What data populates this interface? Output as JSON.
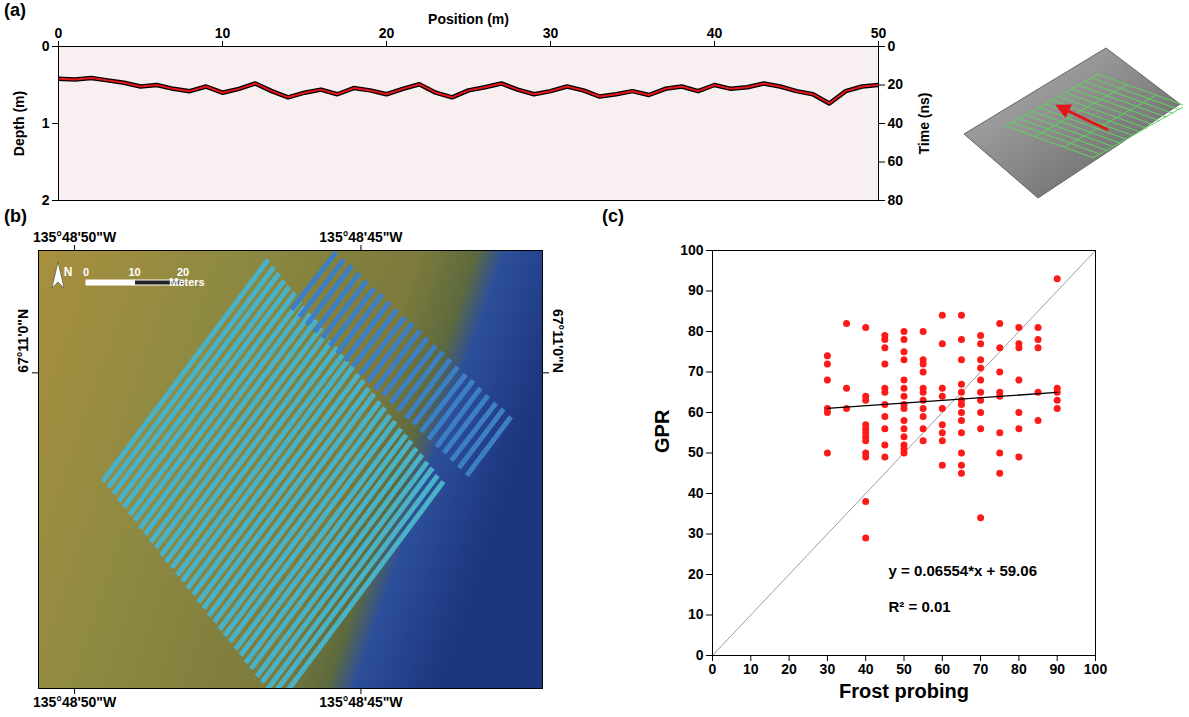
{
  "chart_data": [
    {
      "type": "line",
      "title": "(a)",
      "x_label": "Position (m)",
      "y_label": "Depth (m)",
      "y2_label": "Time (ns)",
      "xlim": [
        0,
        50
      ],
      "xticks": [
        0,
        10,
        20,
        30,
        40,
        50
      ],
      "ylim": [
        0,
        2
      ],
      "yticks": [
        0,
        1,
        2
      ],
      "y2lim": [
        0,
        80
      ],
      "y2ticks": [
        0,
        20,
        40,
        60,
        80
      ],
      "x": [
        0,
        1,
        2,
        3,
        4,
        5,
        6,
        7,
        8,
        9,
        10,
        11,
        12,
        13,
        14,
        15,
        16,
        17,
        18,
        19,
        20,
        21,
        22,
        23,
        24,
        25,
        26,
        27,
        28,
        29,
        30,
        31,
        32,
        33,
        34,
        35,
        36,
        37,
        38,
        39,
        40,
        41,
        42,
        43,
        44,
        45,
        46,
        47,
        48,
        49,
        50
      ],
      "series": [
        {
          "color": "#e8161b",
          "values": [
            0.42,
            0.43,
            0.41,
            0.44,
            0.47,
            0.52,
            0.5,
            0.55,
            0.58,
            0.52,
            0.6,
            0.55,
            0.48,
            0.58,
            0.66,
            0.6,
            0.56,
            0.62,
            0.54,
            0.57,
            0.62,
            0.55,
            0.49,
            0.6,
            0.66,
            0.57,
            0.53,
            0.48,
            0.56,
            0.62,
            0.58,
            0.52,
            0.57,
            0.65,
            0.62,
            0.58,
            0.63,
            0.55,
            0.52,
            0.58,
            0.5,
            0.55,
            0.53,
            0.48,
            0.52,
            0.58,
            0.62,
            0.74,
            0.58,
            0.52,
            0.5
          ]
        }
      ]
    },
    {
      "type": "map",
      "title": "(b)",
      "xlim": [
        50.63,
        41.83
      ],
      "xticks": [
        {
          "value": 50,
          "label": "135°48'50\"W"
        },
        {
          "value": 45,
          "label": "135°48'45\"W"
        }
      ],
      "ylim": [
        -2.09,
        0.81
      ],
      "yticks": [
        {
          "value": 0,
          "label": "67°11'0\"N"
        }
      ],
      "survey_lines": [
        {
          "color": "#49b2c6",
          "x1": [
            49.51,
            49.41,
            49.32,
            49.23,
            49.14,
            49.04,
            48.95,
            48.86,
            48.77,
            48.67,
            48.58,
            48.49,
            48.4,
            48.3,
            48.21,
            48.12,
            48.03,
            47.93,
            47.84,
            47.75,
            47.66,
            47.56,
            47.47,
            47.38,
            47.29,
            47.19,
            47.1,
            47.01,
            46.92,
            46.82,
            46.73,
            46.64,
            46.55,
            46.45
          ],
          "y1": [
            -0.72,
            -0.76,
            -0.8,
            -0.85,
            -0.89,
            -0.94,
            -0.98,
            -1.03,
            -1.07,
            -1.12,
            -1.16,
            -1.21,
            -1.25,
            -1.29,
            -1.34,
            -1.38,
            -1.43,
            -1.47,
            -1.52,
            -1.56,
            -1.61,
            -1.65,
            -1.7,
            -1.74,
            -1.78,
            -1.83,
            -1.87,
            -1.92,
            -1.96,
            -2.01,
            -2.05,
            -2.1,
            -2.14,
            -2.19
          ],
          "x2": [
            46.62,
            46.52,
            46.43,
            46.34,
            46.25,
            46.15,
            46.06,
            45.97,
            45.88,
            45.78,
            45.69,
            45.6,
            45.51,
            45.41,
            45.32,
            45.23,
            45.14,
            45.04,
            44.95,
            44.86,
            44.77,
            44.67,
            44.58,
            44.49,
            44.4,
            44.3,
            44.21,
            44.12,
            44.03,
            43.93,
            43.84,
            43.75,
            43.66,
            43.56
          ],
          "y2": [
            0.75,
            0.7,
            0.66,
            0.61,
            0.57,
            0.53,
            0.48,
            0.44,
            0.39,
            0.35,
            0.3,
            0.26,
            0.21,
            0.17,
            0.12,
            0.08,
            0.04,
            -0.01,
            -0.05,
            -0.1,
            -0.14,
            -0.19,
            -0.23,
            -0.28,
            -0.32,
            -0.37,
            -0.41,
            -0.45,
            -0.5,
            -0.54,
            -0.59,
            -0.63,
            -0.68,
            -0.72
          ]
        },
        {
          "color": "#3c7fc4",
          "x1": [
            46.21,
            46.07,
            45.94,
            45.81,
            45.67,
            45.54,
            45.41,
            45.28,
            45.14,
            45.01,
            44.88,
            44.75,
            44.61,
            44.48,
            44.35,
            44.21,
            44.08,
            43.95,
            43.82,
            43.68,
            43.55,
            43.42,
            43.29,
            43.15
          ],
          "y1": [
            0.42,
            0.37,
            0.32,
            0.27,
            0.23,
            0.18,
            0.13,
            0.08,
            0.04,
            -0.01,
            -0.06,
            -0.11,
            -0.15,
            -0.2,
            -0.25,
            -0.3,
            -0.34,
            -0.39,
            -0.44,
            -0.49,
            -0.53,
            -0.58,
            -0.63,
            -0.68
          ],
          "x2": [
            45.43,
            45.3,
            45.16,
            45.03,
            44.9,
            44.77,
            44.63,
            44.5,
            44.37,
            44.23,
            44.1,
            43.97,
            43.84,
            43.7,
            43.57,
            43.44,
            43.31,
            43.17,
            43.04,
            42.91,
            42.78,
            42.64,
            42.51,
            42.38
          ],
          "y2": [
            0.8,
            0.75,
            0.71,
            0.66,
            0.61,
            0.56,
            0.52,
            0.47,
            0.42,
            0.37,
            0.33,
            0.28,
            0.23,
            0.18,
            0.14,
            0.09,
            0.04,
            -0.01,
            -0.05,
            -0.1,
            -0.15,
            -0.2,
            -0.24,
            -0.29
          ]
        }
      ],
      "scale_bar": {
        "ticks": [
          0,
          10,
          20
        ],
        "label": "Meters"
      },
      "north_label": "N"
    },
    {
      "type": "scatter",
      "title": "(c)",
      "x_label": "Frost probing",
      "y_label": "GPR",
      "xlim": [
        0,
        100
      ],
      "xticks": [
        0,
        10,
        20,
        30,
        40,
        50,
        60,
        70,
        80,
        90,
        100
      ],
      "ylim": [
        0,
        100
      ],
      "yticks": [
        0,
        10,
        20,
        30,
        40,
        50,
        60,
        70,
        80,
        90,
        100
      ],
      "color": "#ff1a1a",
      "marker": "circle",
      "x": [
        30,
        30,
        30,
        30,
        30,
        30,
        35,
        35,
        35,
        40,
        40,
        40,
        40,
        40,
        40,
        40,
        40,
        40,
        40,
        40,
        40,
        45,
        45,
        45,
        45,
        45,
        45,
        45,
        45,
        45,
        45,
        45,
        50,
        50,
        50,
        50,
        50,
        50,
        50,
        50,
        50,
        50,
        50,
        50,
        50,
        50,
        50,
        55,
        55,
        55,
        55,
        55,
        55,
        55,
        55,
        55,
        55,
        55,
        60,
        60,
        60,
        60,
        60,
        60,
        60,
        60,
        60,
        65,
        65,
        65,
        65,
        65,
        65,
        65,
        65,
        65,
        65,
        65,
        65,
        65,
        70,
        70,
        70,
        70,
        70,
        70,
        70,
        70,
        70,
        70,
        75,
        75,
        75,
        75,
        75,
        75,
        75,
        75,
        80,
        80,
        80,
        80,
        80,
        80,
        80,
        85,
        85,
        85,
        85,
        85,
        90,
        90,
        90,
        90,
        90
      ],
      "values": [
        74,
        72,
        68,
        61,
        60,
        50,
        82,
        66,
        61,
        81,
        64,
        63,
        57,
        56,
        55,
        54,
        53,
        50,
        49,
        38,
        29,
        79,
        78,
        76,
        72,
        66,
        65,
        62,
        59,
        56,
        52,
        49,
        80,
        78,
        75,
        73,
        68,
        66,
        64,
        62,
        61,
        58,
        56,
        54,
        52,
        51,
        50,
        80,
        73,
        72,
        70,
        66,
        65,
        63,
        61,
        59,
        56,
        53,
        84,
        77,
        66,
        64,
        61,
        57,
        55,
        53,
        47,
        84,
        78,
        73,
        67,
        65,
        63,
        62,
        60,
        58,
        55,
        50,
        47,
        45,
        79,
        77,
        73,
        71,
        68,
        65,
        63,
        60,
        56,
        34,
        82,
        76,
        70,
        65,
        64,
        55,
        50,
        45,
        81,
        77,
        76,
        68,
        60,
        56,
        49,
        81,
        78,
        76,
        65,
        58,
        93,
        66,
        65,
        63,
        61
      ],
      "fit_line": {
        "x": [
          30,
          90
        ],
        "values": [
          61.03,
          64.96
        ],
        "color": "#000000"
      },
      "reference_line": {
        "x": [
          0,
          100
        ],
        "values": [
          0,
          100
        ],
        "color": "#9e9e9e"
      },
      "annotations": [
        "y = 0.06554*x + 59.06",
        "R² = 0.01"
      ]
    }
  ]
}
